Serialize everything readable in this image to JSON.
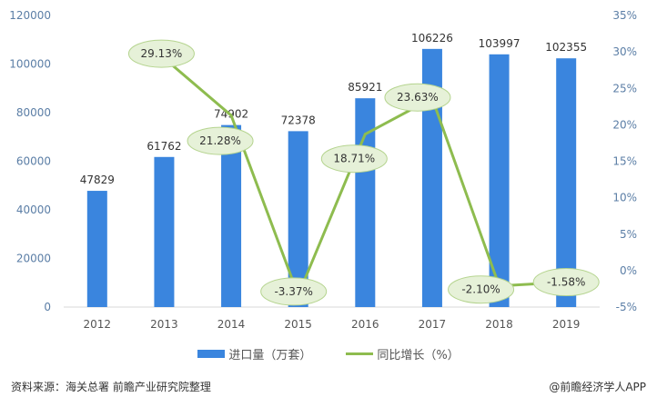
{
  "chart_data": {
    "type": "bar+line",
    "categories": [
      "2012",
      "2013",
      "2014",
      "2015",
      "2016",
      "2017",
      "2018",
      "2019"
    ],
    "series": [
      {
        "name": "进口量（万套）",
        "type": "bar",
        "axis": "left",
        "color": "#3a85de",
        "values": [
          47829,
          61762,
          74902,
          72378,
          85921,
          106226,
          103997,
          102355
        ],
        "labels": [
          "47829",
          "61762",
          "74902",
          "72378",
          "85921",
          "106226",
          "103997",
          "102355"
        ]
      },
      {
        "name": "同比增长（%）",
        "type": "line",
        "axis": "right",
        "color": "#8ebc4f",
        "values": [
          null,
          29.13,
          21.28,
          -3.37,
          18.71,
          23.63,
          -2.1,
          -1.58
        ],
        "labels": [
          "",
          "29.13%",
          "21.28%",
          "-3.37%",
          "18.71%",
          "23.63%",
          "-2.10%",
          "-1.58%"
        ]
      }
    ],
    "y_left": {
      "range": [
        0,
        120000
      ],
      "ticks": [
        "0",
        "20000",
        "40000",
        "60000",
        "80000",
        "100000",
        "120000"
      ]
    },
    "y_right": {
      "range": [
        -5,
        35
      ],
      "ticks": [
        "-5%",
        "0%",
        "5%",
        "10%",
        "15%",
        "20%",
        "25%",
        "30%",
        "35%"
      ]
    },
    "grid": false,
    "legend_position": "bottom"
  },
  "legend": {
    "bar_label": "进口量（万套）",
    "line_label": "同比增长（%）"
  },
  "footer": {
    "source": "资料来源：海关总署 前瞻产业研究院整理",
    "credit": "@前瞻经济学人APP"
  }
}
